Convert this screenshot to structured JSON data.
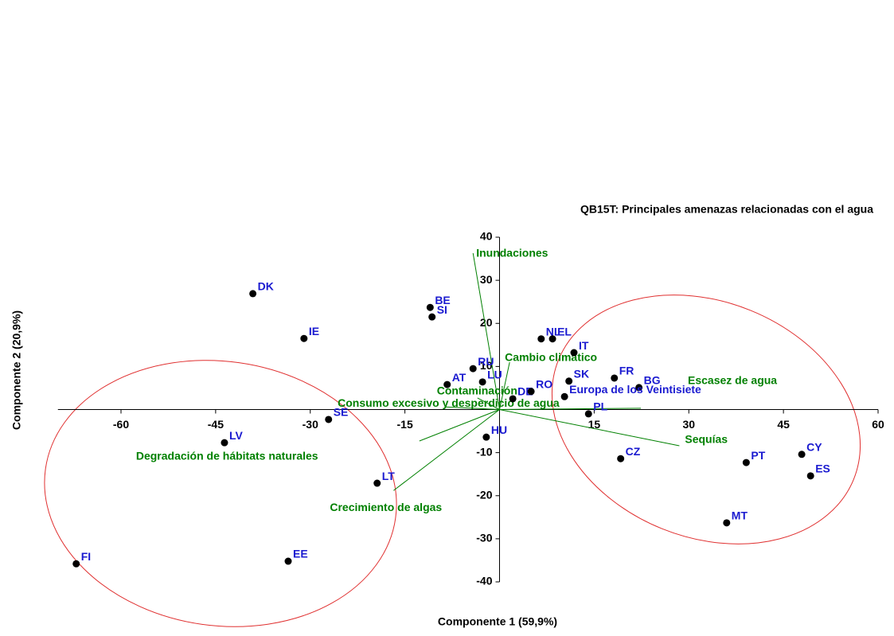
{
  "chart_data": {
    "type": "scatter",
    "title": "QB15T: Principales amenazas relacionadas con el agua",
    "x_label": "Componente 1 (59,9%)",
    "y_label": "Componente 2 (20,9%)",
    "xlim": [
      -70,
      60
    ],
    "ylim": [
      -40,
      40
    ],
    "xticks": [
      -60,
      -45,
      -30,
      -15,
      15,
      30,
      45,
      60
    ],
    "yticks": [
      40,
      30,
      20,
      10,
      -10,
      -20,
      -30,
      -40
    ],
    "points": {
      "color": "#000000",
      "label_color": "#1a1ad0",
      "labels": [
        "DK",
        "IE",
        "BE",
        "SI",
        "NL",
        "EL",
        "IT",
        "RU",
        "AT",
        "LU",
        "DE",
        "RO",
        "SK",
        "FR",
        "BG",
        "Europa de los Veintisiete",
        "PL",
        "SE",
        "HU",
        "LV",
        "CZ",
        "CY",
        "PT",
        "ES",
        "LT",
        "MT",
        "EE",
        "FI"
      ],
      "x": [
        -39.1,
        -31.0,
        -11.0,
        -10.7,
        6.6,
        8.4,
        11.8,
        -4.2,
        -8.3,
        -2.7,
        2.1,
        5.0,
        11.0,
        18.2,
        22.1,
        10.3,
        14.1,
        -27.1,
        -2.1,
        -43.6,
        19.2,
        47.9,
        39.1,
        49.3,
        -19.4,
        36.0,
        -33.5,
        -67.1
      ],
      "y": [
        26.9,
        16.5,
        23.7,
        21.5,
        16.4,
        16.4,
        13.2,
        9.5,
        5.8,
        6.4,
        2.5,
        4.2,
        6.6,
        7.3,
        5.1,
        3.0,
        -1.0,
        -2.3,
        -6.4,
        -7.7,
        -11.4,
        -10.4,
        -12.3,
        -15.4,
        -17.1,
        -26.3,
        -35.2,
        -35.8
      ]
    },
    "vectors": {
      "color": "#008000",
      "labels": [
        "Inundaciones",
        "Cambio climático",
        "Escasez de agua",
        "Sequías",
        "Contaminación",
        "Consumo excesivo y desperdicio de agua",
        "Degradación de hábitats naturales",
        "Crecimiento de algas"
      ],
      "x": [
        -4.2,
        1.6,
        22.4,
        28.5,
        -3.5,
        -8.5,
        -12.7,
        -16.8
      ],
      "y": [
        36.3,
        11.0,
        0.3,
        -8.4,
        2.7,
        0.6,
        -7.3,
        -18.8
      ]
    }
  }
}
